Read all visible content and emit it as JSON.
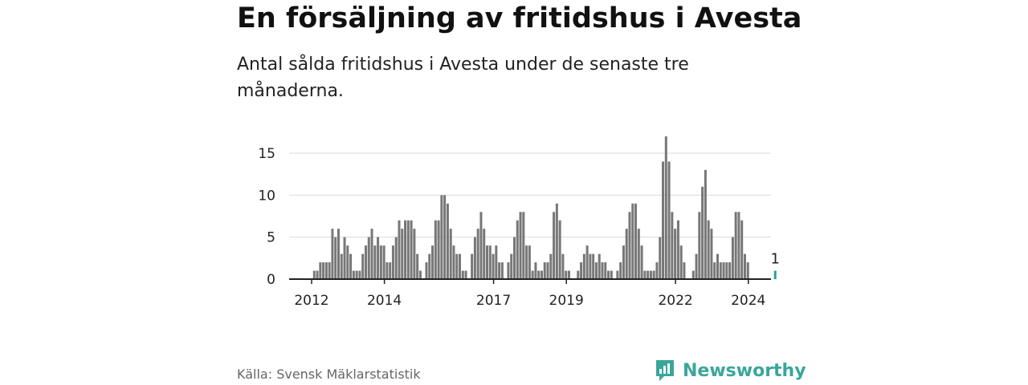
{
  "header": {
    "title": "En försäljning av fritidshus i Avesta",
    "subtitle": "Antal sålda fritidshus i Avesta under de senaste tre månaderna."
  },
  "footer": {
    "source": "Källa: Svensk Mäklarstatistik",
    "brand": "Newsworthy",
    "brand_color": "#3aa69a"
  },
  "chart_data": {
    "type": "bar",
    "title": "",
    "xlabel": "",
    "ylabel": "",
    "ylim": [
      0,
      17
    ],
    "y_ticks": [
      0,
      5,
      10,
      15
    ],
    "x_ticks": [
      "2012",
      "2014",
      "2017",
      "2019",
      "2022",
      "2024"
    ],
    "grid": true,
    "bar_color": "#777777",
    "highlight_color": "#2aa198",
    "highlight_label": "1",
    "values": [
      0,
      1,
      1,
      2,
      2,
      2,
      2,
      6,
      5,
      6,
      3,
      5,
      4,
      3,
      1,
      1,
      1,
      3,
      4,
      5,
      6,
      4,
      5,
      4,
      4,
      2,
      2,
      4,
      5,
      7,
      6,
      7,
      7,
      7,
      6,
      3,
      1,
      0,
      2,
      3,
      4,
      7,
      7,
      10,
      10,
      9,
      6,
      4,
      3,
      3,
      1,
      1,
      0,
      3,
      5,
      6,
      8,
      6,
      4,
      4,
      3,
      4,
      2,
      2,
      0,
      2,
      3,
      5,
      7,
      8,
      8,
      4,
      4,
      1,
      2,
      1,
      1,
      2,
      2,
      3,
      8,
      9,
      7,
      3,
      1,
      1,
      0,
      0,
      1,
      2,
      3,
      4,
      3,
      3,
      2,
      3,
      2,
      2,
      1,
      1,
      0,
      1,
      2,
      4,
      6,
      8,
      9,
      9,
      6,
      4,
      1,
      1,
      1,
      1,
      2,
      5,
      14,
      17,
      14,
      8,
      6,
      7,
      4,
      2,
      0,
      0,
      1,
      3,
      8,
      11,
      13,
      7,
      6,
      2,
      3,
      2,
      2,
      2,
      2,
      5,
      8,
      8,
      7,
      3,
      2,
      0,
      0,
      0,
      0,
      0,
      0,
      0,
      0,
      1
    ]
  }
}
